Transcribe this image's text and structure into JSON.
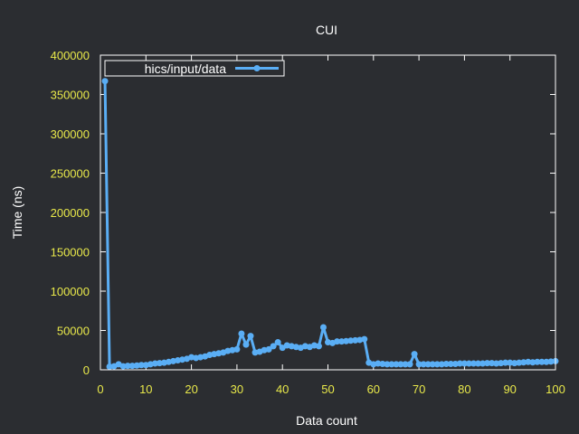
{
  "chart_data": {
    "type": "line",
    "title": "CUI",
    "xlabel": "Data count",
    "ylabel": "Time (ns)",
    "xlim": [
      0,
      100
    ],
    "ylim": [
      0,
      400000
    ],
    "x_ticks": [
      "0",
      "10",
      "20",
      "30",
      "40",
      "50",
      "60",
      "70",
      "80",
      "90",
      "100"
    ],
    "y_ticks": [
      "0",
      "50000",
      "100000",
      "150000",
      "200000",
      "250000",
      "300000",
      "350000",
      "400000"
    ],
    "grid": false,
    "legend_position": "top-left",
    "colors": {
      "background": "#2b2d31",
      "frame": "#ffffff",
      "series": "#5aaef5",
      "tick_labels": "#e8e84a",
      "text": "#ffffff"
    },
    "series": [
      {
        "name": "hics/input/data",
        "x": [
          1,
          2,
          3,
          4,
          5,
          6,
          7,
          8,
          9,
          10,
          11,
          12,
          13,
          14,
          15,
          16,
          17,
          18,
          19,
          20,
          21,
          22,
          23,
          24,
          25,
          26,
          27,
          28,
          29,
          30,
          31,
          32,
          33,
          34,
          35,
          36,
          37,
          38,
          39,
          40,
          41,
          42,
          43,
          44,
          45,
          46,
          47,
          48,
          49,
          50,
          51,
          52,
          53,
          54,
          55,
          56,
          57,
          58,
          59,
          60,
          61,
          62,
          63,
          64,
          65,
          66,
          67,
          68,
          69,
          70,
          71,
          72,
          73,
          74,
          75,
          76,
          77,
          78,
          79,
          80,
          81,
          82,
          83,
          84,
          85,
          86,
          87,
          88,
          89,
          90,
          91,
          92,
          93,
          94,
          95,
          96,
          97,
          98,
          99,
          100
        ],
        "values": [
          367000,
          4000,
          4500,
          7000,
          4500,
          5000,
          5000,
          5500,
          6000,
          6000,
          7000,
          8000,
          8500,
          9000,
          10000,
          11000,
          12000,
          13000,
          14000,
          16000,
          15000,
          16000,
          17000,
          19000,
          20000,
          21000,
          22000,
          24000,
          25000,
          26000,
          46000,
          32000,
          43000,
          22000,
          23000,
          25000,
          26000,
          30000,
          35000,
          28000,
          31000,
          30000,
          29000,
          28000,
          30000,
          29000,
          31000,
          30000,
          54000,
          35000,
          34000,
          36000,
          36000,
          36500,
          37000,
          37500,
          38000,
          39000,
          9000,
          7000,
          8000,
          7500,
          7000,
          7000,
          7000,
          7000,
          7000,
          7000,
          20000,
          7000,
          7000,
          7000,
          7000,
          7000,
          7000,
          7500,
          7500,
          7500,
          8000,
          8000,
          8000,
          8000,
          8000,
          8000,
          8500,
          8500,
          8000,
          8500,
          9000,
          9000,
          8500,
          9000,
          9500,
          10000,
          9500,
          10000,
          10000,
          10000,
          10500,
          11000
        ]
      }
    ]
  }
}
